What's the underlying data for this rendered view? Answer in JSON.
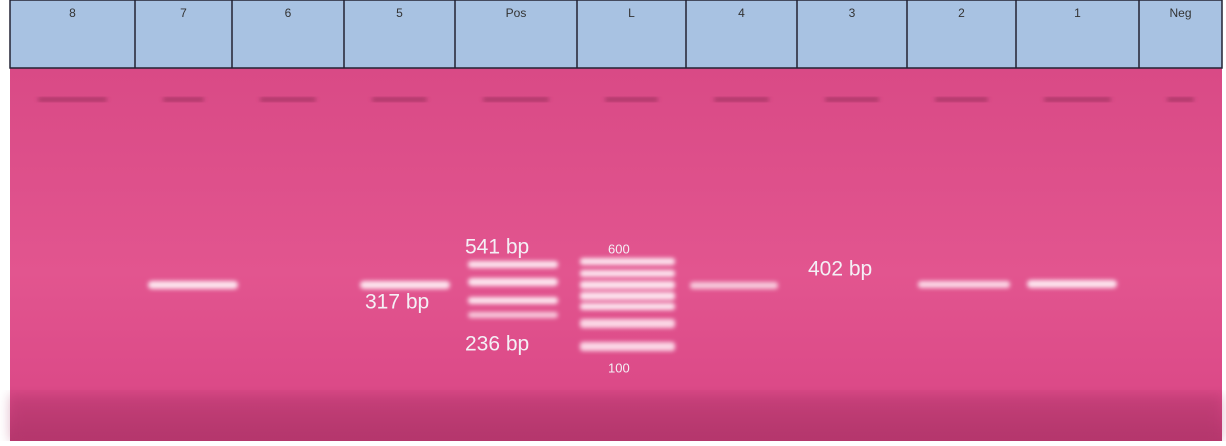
{
  "lanes": [
    "8",
    "7",
    "6",
    "5",
    "Pos",
    "L",
    "4",
    "3",
    "2",
    "1",
    "Neg"
  ],
  "annotations": {
    "pos_high": "541 bp",
    "pos_mid": "317 bp",
    "pos_low": "236 bp",
    "sample": "402 bp",
    "ladder_top": "600",
    "ladder_bottom": "100"
  }
}
